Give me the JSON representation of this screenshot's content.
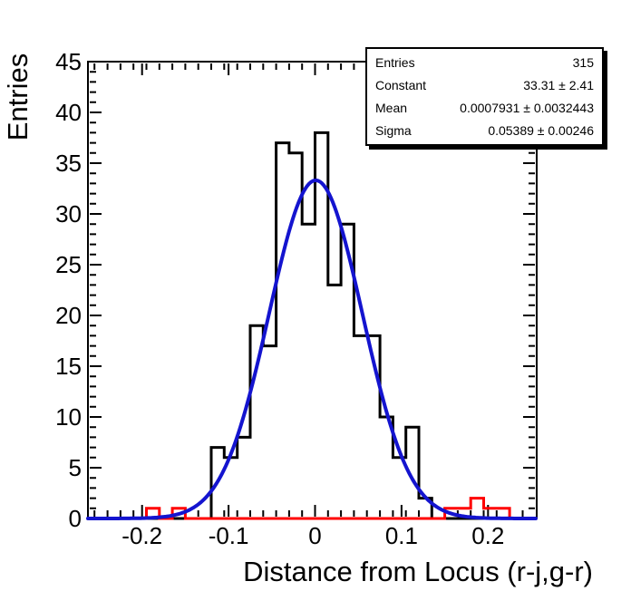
{
  "chart_data": {
    "type": "histogram",
    "title": "",
    "xlabel": "Distance from Locus (r-j,g-r)",
    "ylabel": "Entries",
    "xlim": [
      -0.2626,
      0.2563
    ],
    "ylim": [
      0,
      45
    ],
    "grid": false,
    "x_major_ticks": [
      -0.2,
      -0.1,
      0,
      0.1,
      0.2
    ],
    "x_tick_labels": [
      "-0.2",
      "-0.1",
      "0",
      "0.1",
      "0.2"
    ],
    "y_major_ticks": [
      0,
      5,
      10,
      15,
      20,
      25,
      30,
      35,
      40,
      45
    ],
    "x_minor_step": 0.015,
    "y_minor_step": 1,
    "bin_width": 0.015,
    "main_histogram": {
      "name": "black-histogram",
      "color": "#000000",
      "bins": [
        [
          -0.12,
          7
        ],
        [
          -0.105,
          6
        ],
        [
          -0.09,
          8
        ],
        [
          -0.075,
          19
        ],
        [
          -0.06,
          17
        ],
        [
          -0.045,
          37
        ],
        [
          -0.03,
          36
        ],
        [
          -0.015,
          29
        ],
        [
          0.0,
          38
        ],
        [
          0.015,
          23
        ],
        [
          0.03,
          29
        ],
        [
          0.045,
          18
        ],
        [
          0.06,
          18
        ],
        [
          0.075,
          10
        ],
        [
          0.09,
          6
        ],
        [
          0.105,
          9
        ],
        [
          0.12,
          2
        ]
      ]
    },
    "outlier_histogram": {
      "name": "red-outlier-histogram",
      "color": "#ff0000",
      "bins": [
        [
          -0.195,
          1
        ],
        [
          -0.165,
          1
        ],
        [
          0.15,
          1
        ],
        [
          0.165,
          1
        ],
        [
          0.18,
          2
        ],
        [
          0.195,
          1
        ],
        [
          0.21,
          1
        ]
      ]
    },
    "fit": {
      "type": "gaussian",
      "constant": 33.31,
      "mean": 0.0007931,
      "sigma": 0.05389,
      "color": "#1414cf"
    },
    "legend_position": "none"
  },
  "stats_box": {
    "rows": [
      {
        "label": "Entries",
        "value": "315"
      },
      {
        "label": "Constant",
        "value": "33.31 ± 2.41"
      },
      {
        "label": "Mean",
        "value": "0.0007931 ± 0.0032443"
      },
      {
        "label": "Sigma",
        "value": "0.05389 ± 0.00246"
      }
    ]
  },
  "colors": {
    "frame": "#000000",
    "histogram": "#000000",
    "outliers": "#ff0000",
    "fit_curve": "#1414cf",
    "background": "#ffffff"
  }
}
